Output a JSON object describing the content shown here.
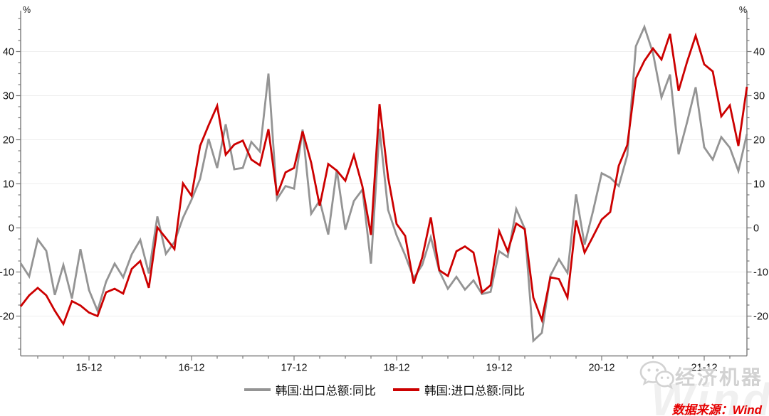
{
  "chart_data": {
    "type": "line",
    "title": "",
    "unit_label": "%",
    "x_monthly_start": "2015-04",
    "x_monthly_end": "2022-05",
    "x_tick_labels": [
      "15-12",
      "16-12",
      "17-12",
      "18-12",
      "19-12",
      "20-12",
      "21-12"
    ],
    "y_ticks": [
      -20,
      -10,
      0,
      10,
      20,
      30,
      40
    ],
    "ylim": [
      -29,
      49
    ],
    "grid": "horizontal",
    "legend_position": "bottom-center",
    "series": [
      {
        "name": "韩国:出口总额:同比",
        "color": "#949494",
        "values": [
          -8.0,
          -11.0,
          -2.6,
          -5.2,
          -15.2,
          -8.4,
          -16.0,
          -4.8,
          -14.1,
          -18.8,
          -12.2,
          -8.1,
          -11.2,
          -6.0,
          -2.7,
          -10.3,
          2.6,
          -5.9,
          -3.2,
          2.3,
          6.4,
          11.1,
          20.2,
          13.6,
          23.5,
          13.3,
          13.6,
          19.5,
          17.3,
          35.0,
          6.5,
          9.5,
          8.9,
          22.3,
          3.2,
          6.2,
          -1.5,
          13.2,
          -0.4,
          6.1,
          8.7,
          -8.1,
          22.5,
          4.1,
          -1.7,
          -6.2,
          -11.4,
          -8.4,
          -2.1,
          -9.8,
          -13.8,
          -11.1,
          -14.0,
          -11.9,
          -15.0,
          -14.5,
          -5.3,
          -6.6,
          4.3,
          -0.2,
          -25.6,
          -23.8,
          -10.8,
          -7.1,
          -10.2,
          7.6,
          -3.8,
          3.9,
          12.4,
          11.4,
          9.5,
          16.5,
          41.2,
          45.6,
          39.7,
          29.6,
          34.8,
          16.7,
          24.0,
          31.9,
          18.3,
          15.5,
          20.6,
          18.2,
          12.9,
          21.3
        ]
      },
      {
        "name": "韩国:进口总额:同比",
        "color": "#cc0000",
        "values": [
          -17.8,
          -15.3,
          -13.6,
          -15.3,
          -18.8,
          -21.8,
          -16.6,
          -17.6,
          -19.2,
          -20.0,
          -14.6,
          -13.8,
          -14.9,
          -9.3,
          -7.5,
          -13.6,
          0.1,
          -2.3,
          -4.8,
          10.1,
          7.3,
          18.6,
          23.3,
          27.7,
          16.6,
          18.9,
          19.8,
          15.5,
          14.2,
          22.4,
          7.4,
          12.6,
          13.6,
          21.9,
          14.8,
          5.0,
          14.5,
          13.0,
          10.7,
          16.5,
          9.4,
          -1.6,
          28.1,
          11.5,
          0.9,
          -1.8,
          -12.6,
          -6.7,
          2.4,
          -9.6,
          -10.9,
          -5.3,
          -4.2,
          -5.6,
          -14.6,
          -13.0,
          -0.7,
          -5.3,
          1.0,
          -0.3,
          -15.8,
          -20.9,
          -11.2,
          -11.6,
          -15.8,
          1.7,
          -5.6,
          -1.9,
          1.9,
          3.6,
          14.1,
          18.8,
          33.9,
          37.9,
          40.7,
          38.2,
          44.0,
          31.1,
          37.7,
          43.6,
          37.1,
          35.5,
          25.3,
          27.8,
          18.6,
          32.0
        ]
      }
    ]
  },
  "footer": {
    "brand": "经济机器",
    "source": "数据来源：Wind",
    "watermark": "Wind"
  },
  "colors": {
    "axis": "#7a7a7a",
    "grid": "#efefef"
  }
}
